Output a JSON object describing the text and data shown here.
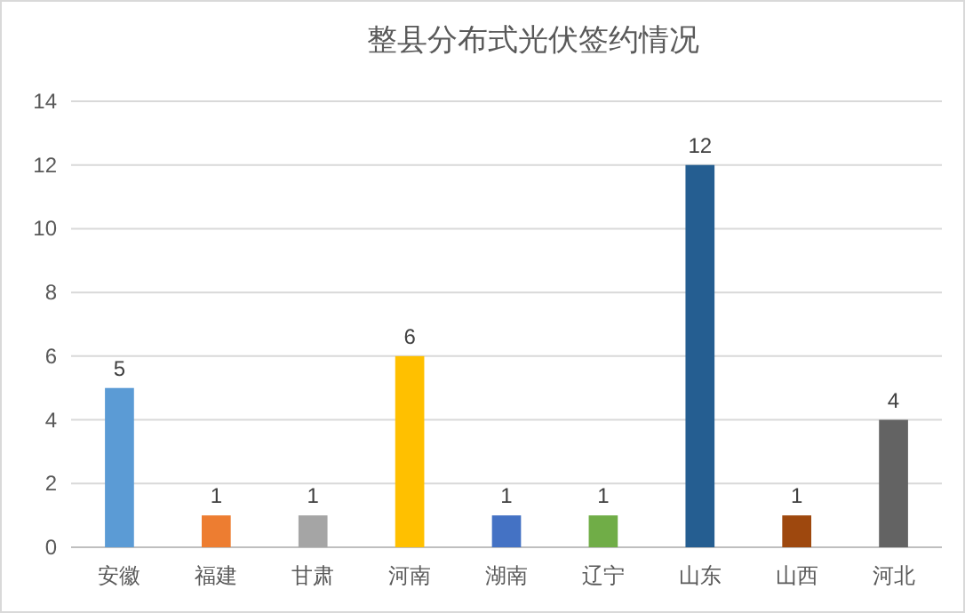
{
  "chart_data": {
    "type": "bar",
    "title": "整县分布式光伏签约情况",
    "categories": [
      "安徽",
      "福建",
      "甘肃",
      "河南",
      "湖南",
      "辽宁",
      "山东",
      "山西",
      "河北"
    ],
    "values": [
      5,
      1,
      1,
      6,
      1,
      1,
      12,
      1,
      4
    ],
    "colors": [
      "#5b9bd5",
      "#ed7d31",
      "#a5a5a5",
      "#ffc000",
      "#4472c4",
      "#70ad47",
      "#255e91",
      "#9e480e",
      "#636363"
    ],
    "ylim": [
      0,
      14
    ],
    "yticks": [
      0,
      2,
      4,
      6,
      8,
      10,
      12,
      14
    ],
    "grid": "y",
    "data_labels": true
  }
}
